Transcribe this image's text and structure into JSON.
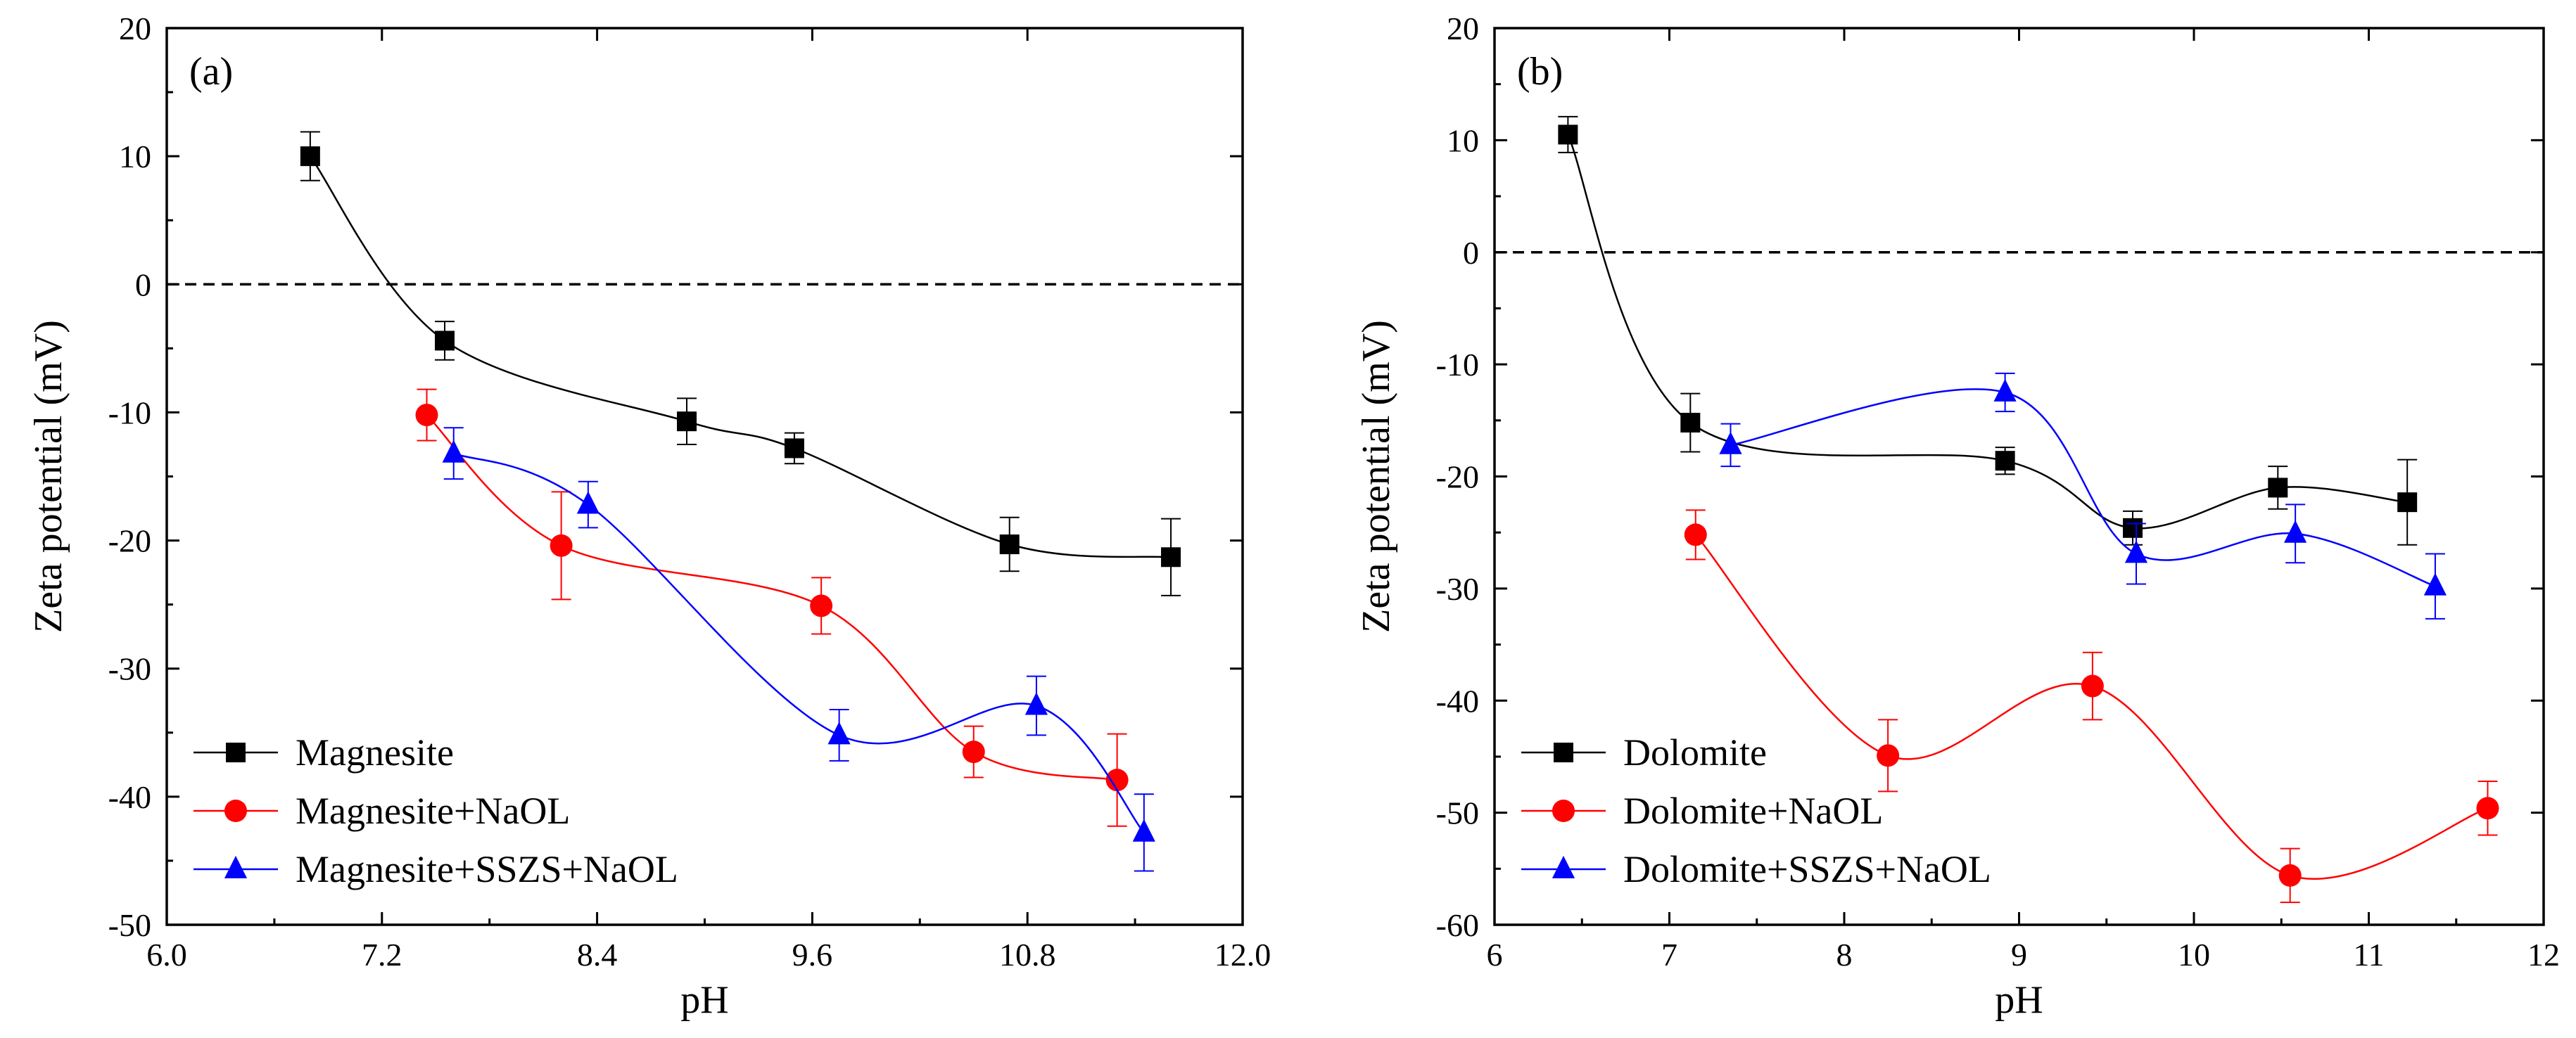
{
  "chart_data": [
    {
      "type": "scatter",
      "panel_label": "(a)",
      "xlabel": "pH",
      "ylabel": "Zeta potential (mV)",
      "xlim": [
        6.0,
        12.0
      ],
      "ylim": [
        -50,
        20
      ],
      "xticks": [
        "6.0",
        "7.2",
        "8.4",
        "9.6",
        "10.8",
        "12.0"
      ],
      "yticks": [
        "20",
        "10",
        "0",
        "-10",
        "-20",
        "-30",
        "-40",
        "-50"
      ],
      "reference_line": 0,
      "legend_position": "bottom-left",
      "series": [
        {
          "name": "Magnesite",
          "color": "#000000",
          "marker": "square",
          "points": [
            {
              "x": 6.8,
              "y": 10.0,
              "err": 1.9
            },
            {
              "x": 7.55,
              "y": -4.4,
              "err": 1.5
            },
            {
              "x": 8.9,
              "y": -10.7,
              "err": 1.8
            },
            {
              "x": 9.5,
              "y": -12.8,
              "err": 1.2
            },
            {
              "x": 10.7,
              "y": -20.3,
              "err": 2.1
            },
            {
              "x": 11.6,
              "y": -21.3,
              "err": 3.0
            }
          ]
        },
        {
          "name": "Magnesite+NaOL",
          "color": "#ff0000",
          "marker": "circle",
          "points": [
            {
              "x": 7.45,
              "y": -10.2,
              "err": 2.0
            },
            {
              "x": 8.2,
              "y": -20.4,
              "err": 4.2
            },
            {
              "x": 9.65,
              "y": -25.1,
              "err": 2.2
            },
            {
              "x": 10.5,
              "y": -36.5,
              "err": 2.0
            },
            {
              "x": 11.3,
              "y": -38.7,
              "err": 3.6
            }
          ]
        },
        {
          "name": "Magnesite+SSZS+NaOL",
          "color": "#0000ff",
          "marker": "triangle",
          "points": [
            {
              "x": 7.6,
              "y": -13.2,
              "err": 2.0
            },
            {
              "x": 8.35,
              "y": -17.2,
              "err": 1.8
            },
            {
              "x": 9.75,
              "y": -35.2,
              "err": 2.0
            },
            {
              "x": 10.85,
              "y": -32.9,
              "err": 2.3
            },
            {
              "x": 11.45,
              "y": -42.8,
              "err": 3.0
            }
          ]
        }
      ]
    },
    {
      "type": "scatter",
      "panel_label": "(b)",
      "xlabel": "pH",
      "ylabel": "Zeta potential (mV)",
      "xlim": [
        6,
        12
      ],
      "ylim": [
        -60,
        20
      ],
      "xticks": [
        "6",
        "7",
        "8",
        "9",
        "10",
        "11",
        "12"
      ],
      "yticks": [
        "20",
        "10",
        "0",
        "-10",
        "-20",
        "-30",
        "-40",
        "-50",
        "-60"
      ],
      "reference_line": 0,
      "legend_position": "bottom-left",
      "series": [
        {
          "name": "Dolomite",
          "color": "#000000",
          "marker": "square",
          "points": [
            {
              "x": 6.42,
              "y": 10.5,
              "err": 1.6
            },
            {
              "x": 7.12,
              "y": -15.2,
              "err": 2.6
            },
            {
              "x": 8.92,
              "y": -18.6,
              "err": 1.2
            },
            {
              "x": 9.65,
              "y": -24.6,
              "err": 1.5
            },
            {
              "x": 10.48,
              "y": -21.0,
              "err": 1.9
            },
            {
              "x": 11.22,
              "y": -22.3,
              "err": 3.8
            }
          ]
        },
        {
          "name": "Dolomite+NaOL",
          "color": "#ff0000",
          "marker": "circle",
          "points": [
            {
              "x": 7.15,
              "y": -25.2,
              "err": 2.2
            },
            {
              "x": 8.25,
              "y": -44.9,
              "err": 3.2
            },
            {
              "x": 9.42,
              "y": -38.7,
              "err": 3.0
            },
            {
              "x": 10.55,
              "y": -55.6,
              "err": 2.4
            },
            {
              "x": 11.68,
              "y": -49.6,
              "err": 2.4
            }
          ]
        },
        {
          "name": "Dolomite+SSZS+NaOL",
          "color": "#0000ff",
          "marker": "triangle",
          "points": [
            {
              "x": 7.35,
              "y": -17.2,
              "err": 1.9
            },
            {
              "x": 8.92,
              "y": -12.5,
              "err": 1.7
            },
            {
              "x": 9.67,
              "y": -26.9,
              "err": 2.7
            },
            {
              "x": 10.58,
              "y": -25.1,
              "err": 2.6
            },
            {
              "x": 11.38,
              "y": -29.8,
              "err": 2.9
            }
          ]
        }
      ]
    }
  ]
}
